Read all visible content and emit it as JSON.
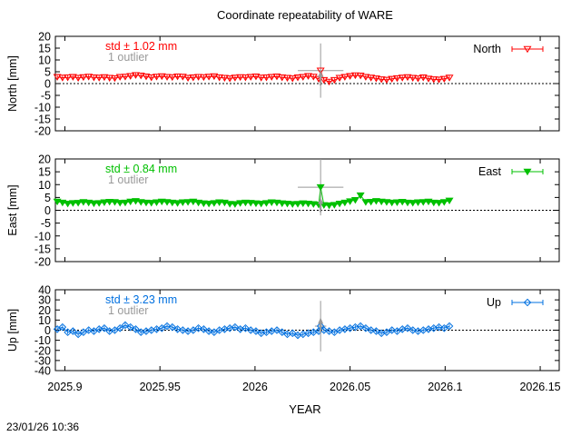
{
  "chart_data": {
    "type": "scatter",
    "title": "Coordinate repeatability of WARE",
    "xlabel": "YEAR",
    "timestamp": "23/01/26 10:36",
    "xlim": [
      2025.895,
      2026.16
    ],
    "x_ticks": [
      {
        "v": 2025.9,
        "label": "2025.9"
      },
      {
        "v": 2025.95,
        "label": "2025.95"
      },
      {
        "v": 2026.0,
        "label": "2026"
      },
      {
        "v": 2026.05,
        "label": "2026.05"
      },
      {
        "v": 2026.1,
        "label": "2026.1"
      },
      {
        "v": 2026.15,
        "label": "2026.15"
      }
    ],
    "panels": [
      {
        "name": "North",
        "ylabel": "North [mm]",
        "legend": "North",
        "color": "#ff0000",
        "marker": "triangle-down-open",
        "std_text": "std ± 1.02 mm",
        "outlier_text": "1 outlier",
        "ylim": [
          -20,
          20
        ],
        "y_ticks": [
          "20",
          "15",
          "10",
          "5",
          "0",
          "-5",
          "-10",
          "-15",
          "-20"
        ],
        "y_tick_values": [
          20,
          15,
          10,
          5,
          0,
          -5,
          -10,
          -15,
          -20
        ],
        "x_start": 2025.896,
        "x_step": 0.00275,
        "values": [
          2.8,
          2.5,
          2.6,
          2.8,
          2.4,
          2.7,
          2.9,
          2.6,
          2.5,
          2.7,
          2.4,
          2.3,
          2.8,
          2.9,
          3.2,
          3.6,
          3.4,
          3.0,
          2.6,
          2.9,
          3.1,
          2.8,
          2.7,
          3.0,
          2.9,
          2.4,
          2.6,
          2.8,
          2.7,
          2.9,
          3.1,
          2.6,
          2.4,
          2.2,
          2.5,
          2.7,
          2.6,
          2.8,
          3.0,
          2.5,
          2.6,
          2.8,
          3.0,
          2.6,
          2.4,
          2.2,
          2.6,
          2.8,
          3.2,
          2.9,
          2.0,
          1.5,
          0.8,
          1.5,
          2.4,
          2.8,
          3.2,
          3.5,
          3.4,
          2.8,
          2.5,
          2.2,
          1.8,
          1.6,
          2.0,
          2.3,
          2.5,
          2.7,
          2.4,
          2.2,
          2.6,
          2.1,
          1.8,
          1.7,
          2.0,
          2.5
        ],
        "outlier": {
          "x": 2026.0345,
          "y": 5.5,
          "err_y": 11.5,
          "err_x": 0.012
        }
      },
      {
        "name": "East",
        "ylabel": "East [mm]",
        "legend": "East",
        "color": "#00c000",
        "marker": "triangle-down-filled",
        "std_text": "std ± 0.84 mm",
        "outlier_text": "1 outlier",
        "ylim": [
          -20,
          20
        ],
        "y_ticks": [
          "20",
          "15",
          "10",
          "5",
          "0",
          "-5",
          "-10",
          "-15",
          "-20"
        ],
        "y_tick_values": [
          20,
          15,
          10,
          5,
          0,
          -5,
          -10,
          -15,
          -20
        ],
        "x_start": 2025.896,
        "x_step": 0.00275,
        "values": [
          3.4,
          3.0,
          2.6,
          2.8,
          2.9,
          3.2,
          3.0,
          2.7,
          2.8,
          3.1,
          3.3,
          3.2,
          2.9,
          3.0,
          3.4,
          3.6,
          3.2,
          3.0,
          2.9,
          3.1,
          3.4,
          3.2,
          3.0,
          2.8,
          3.1,
          3.2,
          3.4,
          3.0,
          2.7,
          2.6,
          2.8,
          3.1,
          3.0,
          2.5,
          2.4,
          2.8,
          3.0,
          2.9,
          2.7,
          2.6,
          2.8,
          3.1,
          3.0,
          2.7,
          2.6,
          2.4,
          2.5,
          2.7,
          2.6,
          2.4,
          2.2,
          2.0,
          1.9,
          2.1,
          2.6,
          3.0,
          3.5,
          4.0,
          5.8,
          3.2,
          3.3,
          3.6,
          3.4,
          3.2,
          3.0,
          3.1,
          3.3,
          3.0,
          2.9,
          3.1,
          3.2,
          3.4,
          3.0,
          2.9,
          3.2,
          3.8
        ],
        "outlier": {
          "x": 2026.0345,
          "y": 9.0,
          "err_y": 11.0,
          "err_x": 0.012
        }
      },
      {
        "name": "Up",
        "ylabel": "Up [mm]",
        "legend": "Up",
        "color": "#0070e0",
        "marker": "diamond-open",
        "std_text": "std ± 3.23 mm",
        "outlier_text": "1 outlier",
        "ylim": [
          -40,
          40
        ],
        "y_ticks": [
          "40",
          "30",
          "20",
          "10",
          "0",
          "-10",
          "-20",
          "-30",
          "-40"
        ],
        "y_tick_values": [
          40,
          30,
          20,
          10,
          0,
          -10,
          -20,
          -30,
          -40
        ],
        "x_start": 2025.896,
        "x_step": 0.00275,
        "values": [
          1,
          3,
          -2,
          -1,
          -4,
          -2,
          0,
          -1,
          1,
          2,
          -1,
          0,
          2,
          5,
          3,
          1,
          -2,
          -1,
          0,
          1,
          2,
          4,
          3,
          1,
          0,
          -1,
          0,
          2,
          1,
          -1,
          -2,
          0,
          1,
          2,
          3,
          1,
          2,
          0,
          -1,
          -3,
          -2,
          -1,
          0,
          -2,
          -4,
          -3,
          -5,
          -4,
          -3,
          -2,
          -1,
          0,
          -1,
          -2,
          0,
          1,
          2,
          3,
          4,
          2,
          0,
          -1,
          -3,
          -2,
          0,
          -1,
          1,
          2,
          0,
          -1,
          0,
          1,
          2,
          3,
          2,
          4
        ],
        "outlier": {
          "x": 2026.0345,
          "y": 4,
          "err_y": 25,
          "err_x": 0.003
        }
      }
    ]
  }
}
